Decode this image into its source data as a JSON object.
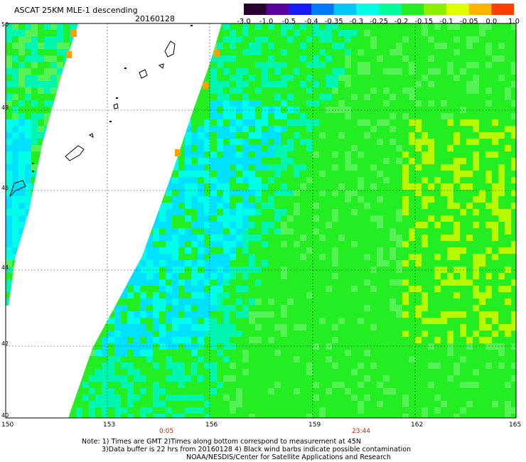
{
  "header": {
    "title": "ASCAT 25KM MLE-1 descending",
    "date": "20160128"
  },
  "colorbar": {
    "labels": [
      "-3.0",
      "-1.0",
      "-0.5",
      "-0.4",
      "-0.35",
      "-0.3",
      "-0.25",
      "-0.2",
      "-0.15",
      "-0.1",
      "-0.05",
      "0.0",
      "1.0"
    ],
    "colors": [
      "#2a0030",
      "#5a00a0",
      "#1a1aff",
      "#0078ff",
      "#00c8ff",
      "#00ffe6",
      "#00ff9a",
      "#20f020",
      "#8cf000",
      "#e0ff00",
      "#ffb400",
      "#ff4000"
    ]
  },
  "map": {
    "lon_labels": [
      "150",
      "153",
      "156",
      "159",
      "162",
      "165"
    ],
    "lat_labels": [
      "50",
      "48",
      "46",
      "44",
      "42",
      "40"
    ],
    "time_labels": [
      "0:05",
      "23:44"
    ],
    "time_label_color": "#cc2200",
    "colors": {
      "green": "#22ee22",
      "light_green": "#55f255",
      "cyan_green": "#00f5b0",
      "cyan": "#00ffe8",
      "deep_cyan": "#00e0ff",
      "yellow_green": "#b8f800",
      "orange": "#ffa000",
      "land_outline": "#000000"
    }
  },
  "notes": {
    "line1": "Note: 1) Times are GMT 2)Times along bottom correspond to measurement at 45N",
    "line2": "3)Data buffer is 22 hrs from 20160128 4) Black wind barbs indicate possible contamination",
    "line3": "NOAA/NESDIS/Center for Satellite Applications and Research"
  }
}
